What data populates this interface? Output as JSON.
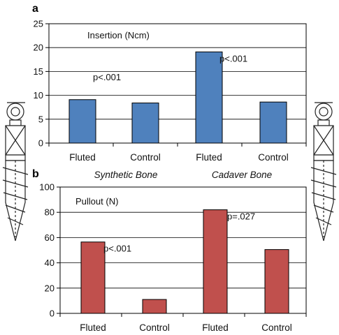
{
  "chart_data": [
    {
      "type": "bar",
      "panel": "a",
      "title": "Insertion (Ncm)",
      "categories": [
        "Fluted",
        "Control",
        "Fluted",
        "Control"
      ],
      "groups": [
        "Synthetic Bone",
        "Cadaver Bone"
      ],
      "values": [
        9.1,
        8.4,
        19.1,
        8.6
      ],
      "ylim": [
        0,
        25
      ],
      "yticks": [
        "0",
        "5",
        "10",
        "15",
        "20",
        "25"
      ],
      "bar_color": "#4f81bd",
      "grid": true,
      "annotations": [
        "p<.001",
        "p<.001"
      ]
    },
    {
      "type": "bar",
      "panel": "b",
      "title": "Pullout (N)",
      "categories": [
        "Fluted",
        "Control",
        "Fluted",
        "Control"
      ],
      "values": [
        56.5,
        11,
        82,
        50.5
      ],
      "ylim": [
        0,
        100
      ],
      "yticks": [
        "0",
        "20",
        "40",
        "60",
        "80",
        "100"
      ],
      "bar_color": "#c0504d",
      "grid": true,
      "annotations": [
        "p<.001",
        "p=.027"
      ]
    }
  ]
}
